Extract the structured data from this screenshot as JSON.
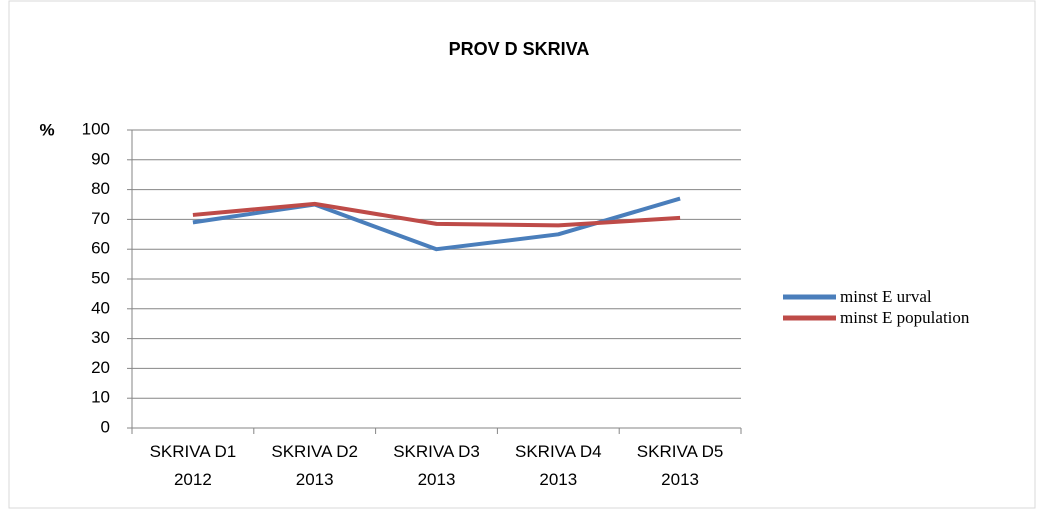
{
  "chart_data": {
    "type": "line",
    "title": "PROV D SKRIVA",
    "y_label": "%",
    "categories": [
      "SKRIVA D1\n2012",
      "SKRIVA D2\n2013",
      "SKRIVA D3\n2013",
      "SKRIVA D4\n2013",
      "SKRIVA D5\n2013"
    ],
    "series": [
      {
        "name": "minst E urval",
        "color": "#4a7ebb",
        "values": [
          69,
          75,
          60,
          65,
          77
        ]
      },
      {
        "name": "minst E population",
        "color": "#be4b48",
        "values": [
          71.5,
          75.2,
          68.5,
          68,
          70.5
        ]
      }
    ],
    "ylim": [
      0,
      100
    ],
    "yticks": [
      0,
      10,
      20,
      30,
      40,
      50,
      60,
      70,
      80,
      90,
      100
    ],
    "grid": true,
    "legend": "right"
  }
}
